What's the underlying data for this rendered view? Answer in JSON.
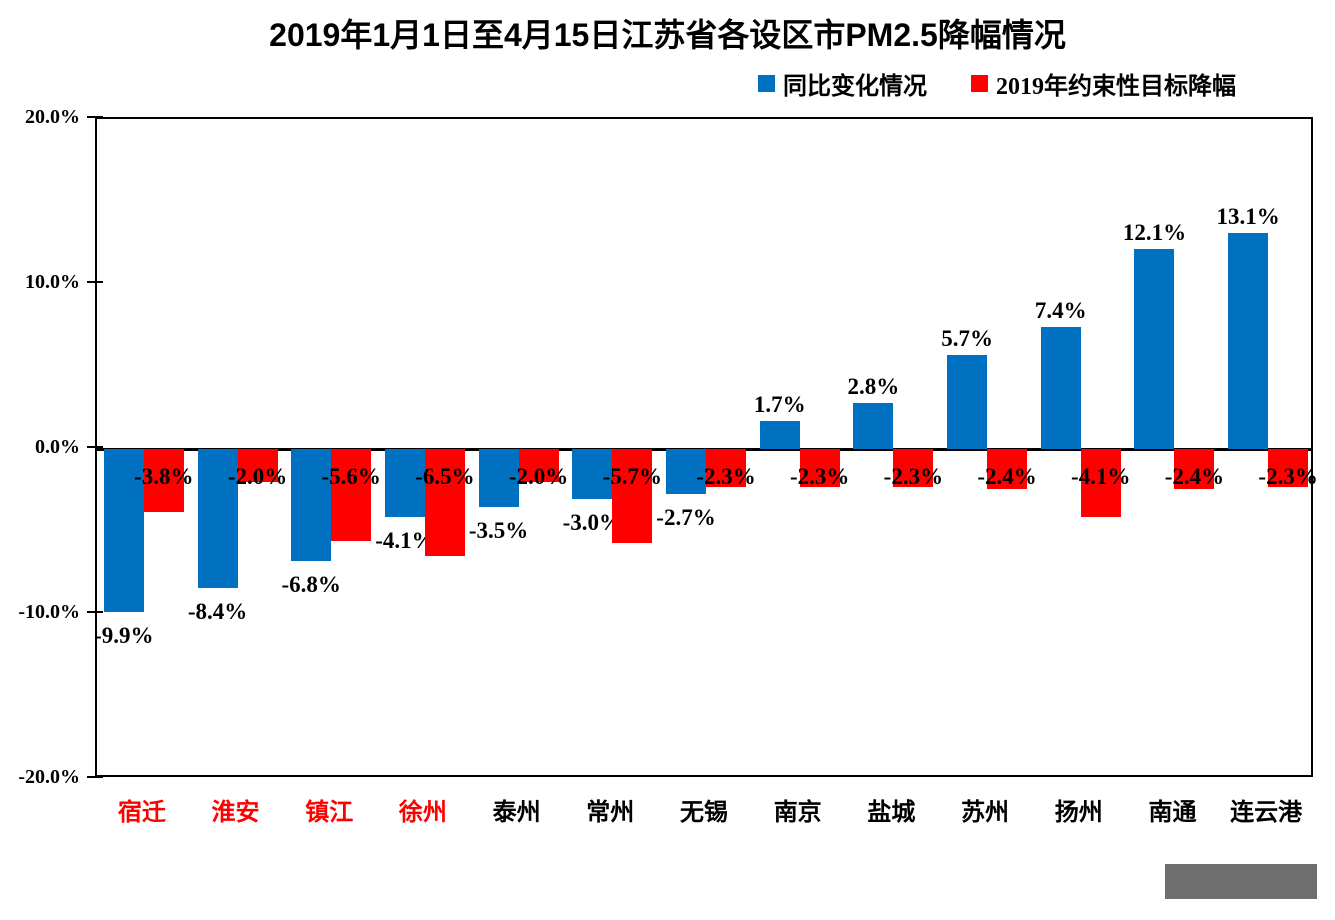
{
  "title": "2019年1月1日至4月15日江苏省各设区市PM2.5降幅情况",
  "legend": [
    {
      "label": "同比变化情况",
      "color": "#0070C0"
    },
    {
      "label": "2019年约束性目标降幅",
      "color": "#FF0000"
    }
  ],
  "chart_data": {
    "type": "bar",
    "title": "2019年1月1日至4月15日江苏省各设区市PM2.5降幅情况",
    "categories": [
      "宿迁",
      "淮安",
      "镇江",
      "徐州",
      "泰州",
      "常州",
      "无锡",
      "南京",
      "盐城",
      "苏州",
      "扬州",
      "南通",
      "连云港"
    ],
    "category_colors": [
      "#FF0000",
      "#FF0000",
      "#FF0000",
      "#FF0000",
      "#000000",
      "#000000",
      "#000000",
      "#000000",
      "#000000",
      "#000000",
      "#000000",
      "#000000",
      "#000000"
    ],
    "series": [
      {
        "name": "同比变化情况",
        "color": "#0070C0",
        "values": [
          -9.9,
          -8.4,
          -6.8,
          -4.1,
          -3.5,
          -3.0,
          -2.7,
          1.7,
          2.8,
          5.7,
          7.4,
          12.1,
          13.1
        ],
        "labels": [
          "-9.9%",
          "-8.4%",
          "-6.8%",
          "-4.1%",
          "-3.5%",
          "-3.0%",
          "-2.7%",
          "1.7%",
          "2.8%",
          "5.7%",
          "7.4%",
          "12.1%",
          "13.1%"
        ]
      },
      {
        "name": "2019年约束性目标降幅",
        "color": "#FF0000",
        "values": [
          -3.8,
          -2.0,
          -5.6,
          -6.5,
          -2.0,
          -5.7,
          -2.3,
          -2.3,
          -2.3,
          -2.4,
          -4.1,
          -2.4,
          -2.3
        ],
        "labels": [
          "-3.8%",
          "-2.0%",
          "-5.6%",
          "-6.5%",
          "-2.0%",
          "-5.7%",
          "-2.3%",
          "-2.3%",
          "-2.3%",
          "-2.4%",
          "-4.1%",
          "-2.4%",
          "-2.3%"
        ]
      }
    ],
    "ylim": [
      -20,
      20
    ],
    "yticks": [
      "20.0%",
      "10.0%",
      "0.0%",
      "-10.0%",
      "-20.0%"
    ],
    "grid": false,
    "legend_position": "top-right",
    "axis_color": "#000000"
  },
  "footer_box": {
    "color": "#6E6E6E"
  }
}
